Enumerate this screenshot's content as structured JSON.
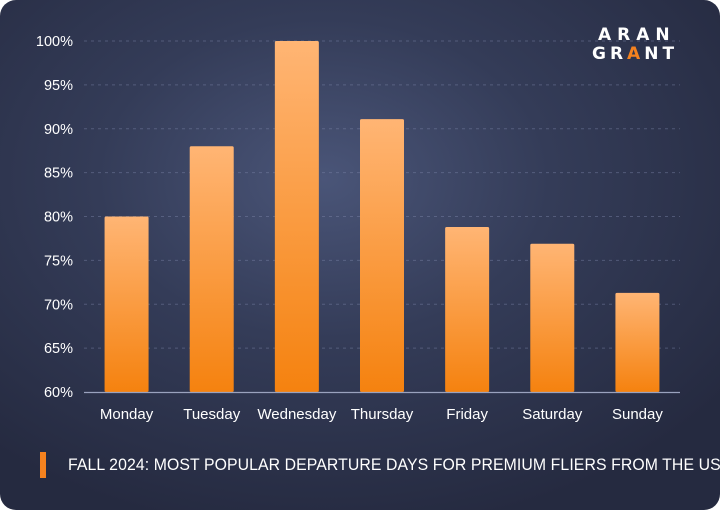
{
  "logo": {
    "line1": "ARAN",
    "line2_pre": "GR",
    "line2_accent": "A",
    "line2_post": "NT"
  },
  "caption": "FALL 2024: MOST POPULAR DEPARTURE DAYS FOR PREMIUM FLIERS FROM THE US",
  "colors": {
    "bar_top": "#ffb574",
    "bar_bottom": "#f5820f",
    "accent": "#f5821f"
  },
  "chart_data": {
    "type": "bar",
    "categories": [
      "Monday",
      "Tuesday",
      "Wednesday",
      "Thursday",
      "Friday",
      "Saturday",
      "Sunday"
    ],
    "values": [
      80,
      88,
      100,
      91.1,
      78.8,
      76.9,
      71.3
    ],
    "ylim": [
      60,
      100
    ],
    "yticks": [
      60,
      65,
      70,
      75,
      80,
      85,
      90,
      95,
      100
    ],
    "tick_suffix": "%",
    "grid": true
  }
}
